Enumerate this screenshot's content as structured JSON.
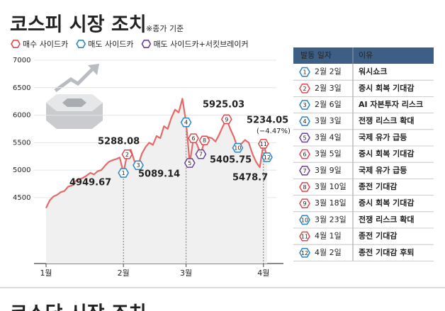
{
  "chart_data": {
    "type": "line",
    "title": "코스피 시장 조치",
    "subtitle": "※종가 기준",
    "legend": [
      {
        "name": "매수 사이드카",
        "color": "#e0474c"
      },
      {
        "name": "매도 사이드카",
        "color": "#2b86c5"
      },
      {
        "name": "매도 사이드카+서킷브레이커",
        "color": "#6a3fa0"
      }
    ],
    "categories": [
      "1월",
      null,
      null,
      null,
      null,
      null,
      null,
      null,
      null,
      null,
      null,
      null,
      null,
      null,
      null,
      null,
      null,
      null,
      null,
      null,
      null,
      "2월",
      null,
      null,
      null,
      null,
      null,
      null,
      null,
      null,
      null,
      null,
      null,
      null,
      null,
      null,
      null,
      null,
      "3월",
      null,
      null,
      null,
      null,
      null,
      null,
      null,
      null,
      null,
      null,
      null,
      null,
      null,
      null,
      null,
      null,
      null,
      null,
      null,
      null,
      "4월",
      null
    ],
    "series": [
      {
        "color": "#e46a6a",
        "values": [
          4310,
          4450,
          4520,
          4550,
          4600,
          4620,
          4700,
          4720,
          4800,
          4830,
          4860,
          4900,
          4950,
          4920,
          4980,
          5000,
          5080,
          5150,
          5180,
          5200,
          5230,
          4949.67,
          5288.08,
          5370,
          5160,
          5089.14,
          5300,
          5420,
          5500,
          5460,
          5620,
          5580,
          5800,
          5750,
          5950,
          6100,
          6050,
          6300,
          5870,
          5130,
          5580,
          5460,
          5290,
          5540,
          5600,
          5580,
          5520,
          5650,
          5800,
          5925.03,
          5750,
          5600,
          5405.75,
          5480,
          5550,
          5500,
          5300,
          5150,
          5052,
          5478.7,
          5234.05
        ]
      }
    ],
    "ylim": [
      3300,
      7000
    ],
    "yticks": [
      4500,
      5000,
      5500,
      6000,
      6500,
      7000
    ],
    "grid": true,
    "annotations": [
      "5288.08",
      "4949.67",
      "5089.14",
      "5925.03",
      "5405.75",
      "5478.7",
      "5234.05",
      "(−4.47%)"
    ]
  },
  "table": {
    "header": [
      "발동 일자",
      "이유"
    ],
    "rows": [
      {
        "no": "1",
        "date": "2월 2일",
        "reason": "워시쇼크",
        "color": "#2b86c5"
      },
      {
        "no": "2",
        "date": "2월 3일",
        "reason": "증시 회복 기대감",
        "color": "#e0474c"
      },
      {
        "no": "3",
        "date": "2월 6일",
        "reason": "AI 자본투자 리스크",
        "color": "#2b86c5"
      },
      {
        "no": "4",
        "date": "3월 3일",
        "reason": "전쟁 리스크 확대",
        "color": "#2b86c5"
      },
      {
        "no": "5",
        "date": "3월 4일",
        "reason": "국제 유가 급등",
        "color": "#6a3fa0"
      },
      {
        "no": "6",
        "date": "3월 5일",
        "reason": "증시 회복 기대감",
        "color": "#e0474c"
      },
      {
        "no": "7",
        "date": "3월 9일",
        "reason": "국제 유가 급등",
        "color": "#6a3fa0"
      },
      {
        "no": "8",
        "date": "3월 10일",
        "reason": "종전 기대감",
        "color": "#e0474c"
      },
      {
        "no": "9",
        "date": "3월 18일",
        "reason": "증시 회복 기대감",
        "color": "#e0474c"
      },
      {
        "no": "10",
        "date": "3월 23일",
        "reason": "전쟁 리스크 확대",
        "color": "#2b86c5"
      },
      {
        "no": "11",
        "date": "4월 1일",
        "reason": "종전 기대감",
        "color": "#e0474c"
      },
      {
        "no": "12",
        "date": "4월 2일",
        "reason": "종전 기대감 후퇴",
        "color": "#2b86c5"
      }
    ]
  },
  "next_title": "코스닥 시장 조치"
}
